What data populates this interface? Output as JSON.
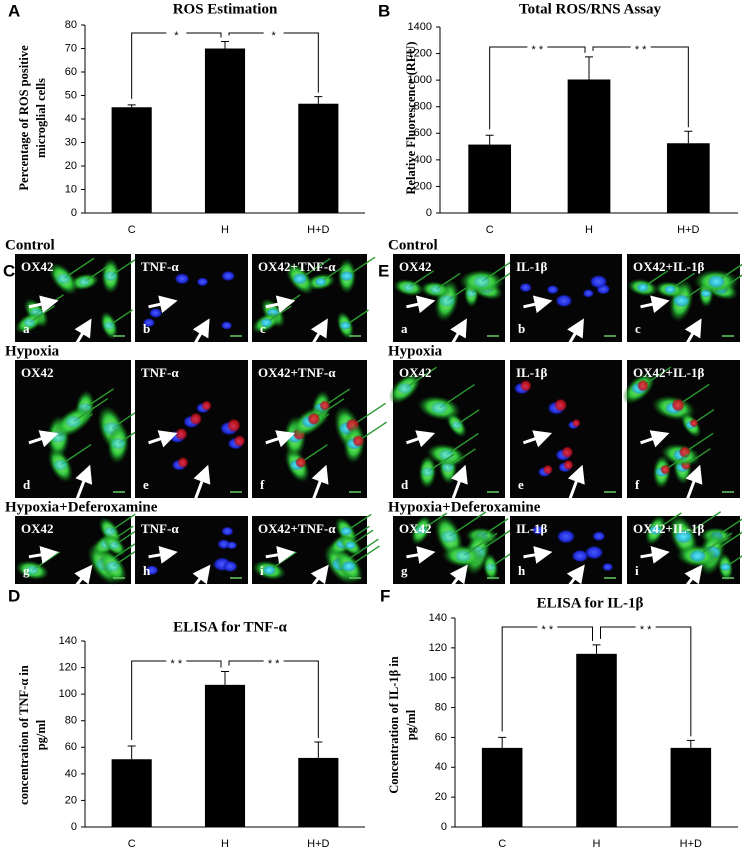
{
  "chart_data": [
    {
      "panel": "A",
      "type": "bar",
      "title": "ROS Estimation",
      "ylabel": [
        "Percentage of ROS positive",
        "microglial cells"
      ],
      "categories": [
        "C",
        "H",
        "H+D"
      ],
      "values": [
        45,
        70,
        46.5
      ],
      "errors": [
        1,
        3,
        3
      ],
      "color": "#000000",
      "ylim": [
        0,
        80
      ],
      "yticks": [
        0,
        10,
        20,
        30,
        40,
        50,
        60,
        70,
        80
      ],
      "annotations": [
        "*",
        "*"
      ]
    },
    {
      "panel": "B",
      "type": "bar",
      "title": "Total ROS/RNS Assay",
      "ylabel": [
        "Relative Fluorescence (RFU)"
      ],
      "categories": [
        "C",
        "H",
        "H+D"
      ],
      "values": [
        515,
        1005,
        525
      ],
      "errors": [
        70,
        170,
        90
      ],
      "color": "#000000",
      "ylim": [
        0,
        1400
      ],
      "yticks": [
        0,
        200,
        400,
        600,
        800,
        1000,
        1200,
        1400
      ],
      "annotations": [
        "* *",
        "* *"
      ]
    },
    {
      "panel": "D",
      "type": "bar",
      "title": "ELISA for TNF-α",
      "ylabel": [
        "concentration of TNF-α in",
        "pg/ml"
      ],
      "categories": [
        "C",
        "H",
        "H+D"
      ],
      "values": [
        51,
        107,
        52
      ],
      "errors": [
        10,
        10,
        12
      ],
      "color": "#000000",
      "ylim": [
        0,
        140
      ],
      "yticks": [
        0,
        20,
        40,
        60,
        80,
        100,
        120,
        140
      ],
      "annotations": [
        "* *",
        "* *"
      ]
    },
    {
      "panel": "F",
      "type": "bar",
      "title": "ELISA for IL-1β",
      "ylabel": [
        "Concentration of IL-1β in",
        "pg/ml"
      ],
      "categories": [
        "C",
        "H",
        "H+D"
      ],
      "values": [
        53,
        116,
        53
      ],
      "errors": [
        7,
        6,
        5
      ],
      "color": "#000000",
      "ylim": [
        0,
        140
      ],
      "yticks": [
        0,
        20,
        40,
        60,
        80,
        100,
        120,
        140
      ],
      "annotations": [
        "* *",
        "* *"
      ]
    }
  ],
  "micrographs": [
    {
      "panel": "C",
      "rows": [
        {
          "heading": "Control",
          "cells": [
            {
              "stain": "OX42",
              "letter": "a"
            },
            {
              "stain": "TNF-α",
              "letter": "b"
            },
            {
              "stain": "OX42+TNF-α",
              "letter": "c"
            }
          ]
        },
        {
          "heading": "Hypoxia",
          "cells": [
            {
              "stain": "OX42",
              "letter": "d"
            },
            {
              "stain": "TNF-α",
              "letter": "e"
            },
            {
              "stain": "OX42+TNF-α",
              "letter": "f"
            }
          ]
        },
        {
          "heading": "Hypoxia+Deferoxamine",
          "cells": [
            {
              "stain": "OX42",
              "letter": "g"
            },
            {
              "stain": "TNF-α",
              "letter": "h"
            },
            {
              "stain": "OX42+TNF-α",
              "letter": "i"
            }
          ]
        }
      ]
    },
    {
      "panel": "E",
      "rows": [
        {
          "heading": "Control",
          "cells": [
            {
              "stain": "OX42",
              "letter": "a"
            },
            {
              "stain": "IL-1β",
              "letter": "b"
            },
            {
              "stain": "OX42+IL-1β",
              "letter": "c"
            }
          ]
        },
        {
          "heading": "Hypoxia",
          "cells": [
            {
              "stain": "OX42",
              "letter": "d"
            },
            {
              "stain": "IL-1β",
              "letter": "e"
            },
            {
              "stain": "OX42+IL-1β",
              "letter": "f"
            }
          ]
        },
        {
          "heading": "Hypoxia+Deferoxamine",
          "cells": [
            {
              "stain": "OX42",
              "letter": "g"
            },
            {
              "stain": "IL-1β",
              "letter": "h"
            },
            {
              "stain": "OX42+IL-1β",
              "letter": "i"
            }
          ]
        }
      ]
    }
  ]
}
